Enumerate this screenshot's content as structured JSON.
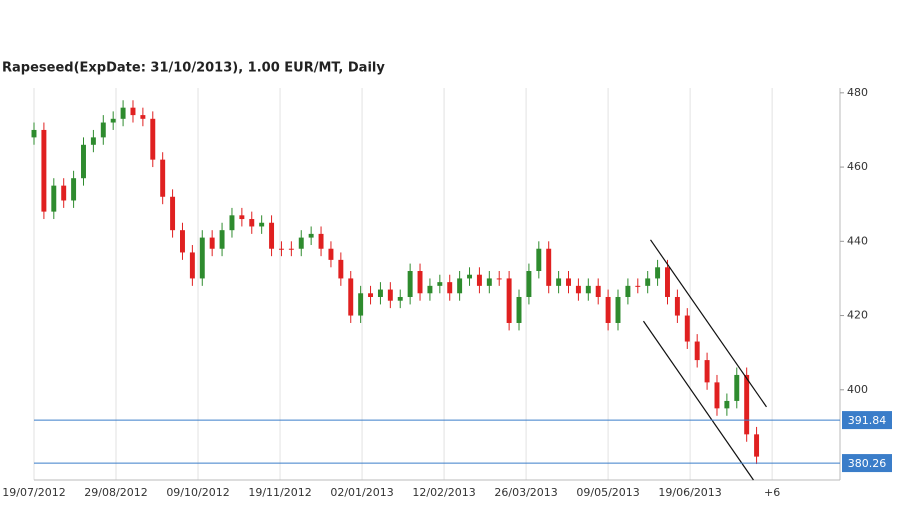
{
  "chart_data": {
    "type": "candlestick",
    "title": "Rapeseed(ExpDate: 31/10/2013), 1.00 EUR/MT, Daily",
    "x": [
      0,
      3.5,
      7,
      10.5,
      14,
      17.5,
      21,
      24.5,
      28,
      31.5,
      35,
      38.5,
      42,
      45.5,
      49,
      52.5,
      56,
      59.5,
      63,
      66.5,
      70,
      73.5,
      77,
      80.5,
      84,
      87.5,
      91,
      94.5,
      98,
      101.5,
      105,
      108.5,
      112,
      115.5,
      119,
      122.5,
      126,
      129.5,
      133,
      136.5,
      140,
      143.5,
      147,
      150.5,
      154,
      157.5,
      161,
      164.5,
      168,
      171.5,
      175,
      178.5,
      182,
      185.5,
      189,
      192.5,
      196,
      199.5,
      203,
      206.5,
      210,
      213.5,
      217,
      220.5,
      224,
      227.5,
      231,
      234.5,
      238,
      241.5,
      245,
      248.5,
      252,
      255.5
    ],
    "open": [
      468,
      470,
      448,
      455,
      451,
      457,
      466,
      468,
      472,
      473,
      476,
      474,
      473,
      462,
      452,
      443,
      437,
      430,
      441,
      438,
      443,
      447,
      446,
      444,
      445,
      438,
      438,
      438,
      441,
      442,
      438,
      435,
      430,
      420,
      426,
      425,
      427,
      424,
      425,
      432,
      426,
      428,
      429,
      426,
      430,
      431,
      428,
      430,
      430,
      418,
      425,
      432,
      438,
      428,
      430,
      428,
      426,
      428,
      425,
      418,
      425,
      428,
      428,
      430,
      433,
      425,
      420,
      413,
      408,
      402,
      395,
      397,
      404,
      388
    ],
    "high": [
      472,
      472,
      457,
      457,
      459,
      468,
      470,
      474,
      475,
      478,
      478,
      476,
      475,
      464,
      454,
      445,
      439,
      443,
      443,
      445,
      449,
      449,
      448,
      447,
      447,
      440,
      440,
      443,
      444,
      444,
      440,
      437,
      432,
      428,
      428,
      429,
      429,
      427,
      434,
      434,
      430,
      431,
      431,
      432,
      433,
      433,
      432,
      432,
      432,
      427,
      434,
      440,
      440,
      432,
      432,
      430,
      430,
      430,
      427,
      427,
      430,
      430,
      432,
      435,
      435,
      427,
      422,
      415,
      410,
      404,
      399,
      406,
      406,
      390
    ],
    "low": [
      466,
      446,
      446,
      449,
      449,
      455,
      464,
      466,
      470,
      471,
      472,
      471,
      460,
      450,
      441,
      435,
      428,
      428,
      436,
      436,
      441,
      444,
      442,
      442,
      436,
      436,
      436,
      436,
      439,
      436,
      433,
      428,
      418,
      418,
      423,
      423,
      422,
      422,
      423,
      424,
      424,
      426,
      424,
      424,
      428,
      426,
      426,
      428,
      416,
      416,
      423,
      430,
      426,
      426,
      426,
      424,
      424,
      423,
      416,
      416,
      423,
      426,
      426,
      428,
      423,
      418,
      411,
      406,
      400,
      393,
      393,
      395,
      386,
      380
    ],
    "close": [
      470,
      448,
      455,
      451,
      457,
      466,
      468,
      472,
      473,
      476,
      474,
      473,
      462,
      452,
      443,
      437,
      430,
      441,
      438,
      443,
      447,
      446,
      444,
      445,
      438,
      438,
      438,
      441,
      442,
      438,
      435,
      430,
      420,
      426,
      425,
      427,
      424,
      425,
      432,
      426,
      428,
      429,
      426,
      430,
      431,
      428,
      430,
      430,
      418,
      425,
      432,
      438,
      428,
      430,
      428,
      426,
      428,
      425,
      418,
      425,
      428,
      428,
      430,
      433,
      425,
      420,
      413,
      408,
      402,
      395,
      397,
      404,
      388,
      382
    ],
    "up_color": "#2e8b2e",
    "down_color": "#e02020",
    "xlim": [
      0,
      285
    ],
    "xticks": [
      {
        "value": 0,
        "label": "19/07/2012"
      },
      {
        "value": 29,
        "label": "29/08/2012"
      },
      {
        "value": 58,
        "label": "09/10/2012"
      },
      {
        "value": 87,
        "label": "19/11/2012"
      },
      {
        "value": 116,
        "label": "02/01/2013"
      },
      {
        "value": 145,
        "label": "12/02/2013"
      },
      {
        "value": 174,
        "label": "26/03/2013"
      },
      {
        "value": 203,
        "label": "09/05/2013"
      },
      {
        "value": 232,
        "label": "19/06/2013"
      },
      {
        "value": 261,
        "label": "+6"
      }
    ],
    "ylim": [
      375.7,
      481.3
    ],
    "yticks": [
      400,
      420,
      440,
      460,
      480
    ],
    "grid": true,
    "hlines": [
      391.84,
      380.26
    ],
    "hline_color": "#3a7dc9",
    "trendlines": [
      {
        "x": [
          218,
          259
        ],
        "y": [
          440.4,
          395.4
        ]
      },
      {
        "x": [
          215.5,
          254.4
        ],
        "y": [
          418.5,
          375.7
        ]
      }
    ]
  }
}
